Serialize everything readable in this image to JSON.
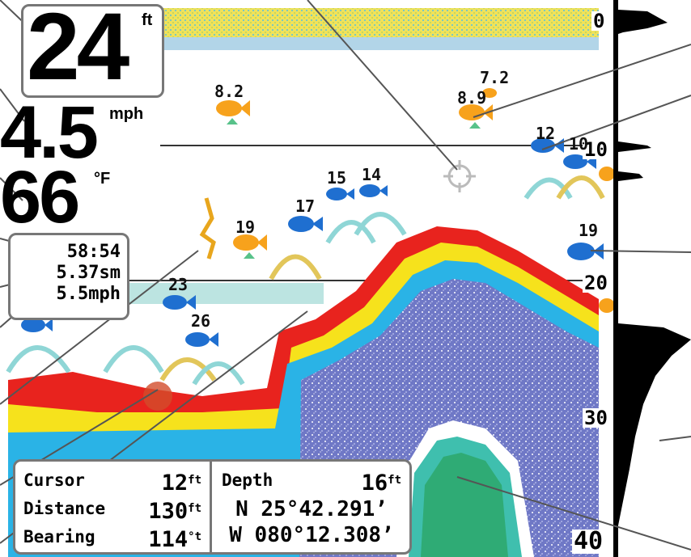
{
  "readouts": {
    "depth_value": "24",
    "depth_unit": "ft",
    "speed_value": "4.5",
    "speed_unit": "mph",
    "temp_value": "66",
    "temp_unit": "°F",
    "timer": "58:54",
    "distance": "5.37sm",
    "avg_speed": "5.5mph"
  },
  "depth_scale": [
    "0",
    "10",
    "20",
    "30",
    "40"
  ],
  "fish": [
    {
      "depth": "8.2"
    },
    {
      "depth": "7.2"
    },
    {
      "depth": "8.9"
    },
    {
      "depth": "12"
    },
    {
      "depth": "10"
    },
    {
      "depth": "15"
    },
    {
      "depth": "14"
    },
    {
      "depth": "17"
    },
    {
      "depth": "19"
    },
    {
      "depth": "19"
    },
    {
      "depth": "23"
    },
    {
      "depth": "26"
    }
  ],
  "cursor_box": {
    "cursor_label": "Cursor",
    "cursor_value": "12",
    "cursor_unit": "ft",
    "distance_label": "Distance",
    "distance_value": "130",
    "distance_unit": "ft",
    "bearing_label": "Bearing",
    "bearing_value": "114",
    "bearing_unit": "°t"
  },
  "position_box": {
    "depth_label": "Depth",
    "depth_value": "16",
    "depth_unit": "ft",
    "latitude": "N 25°42.291’",
    "longitude": "W 080°12.308’"
  },
  "colors": {
    "strong_return": "#e8231e",
    "medium_return": "#f6e21c",
    "weak_return": "#2ab3e6",
    "bottom_fill": "#7a7fc8",
    "fish_orange": "#f7a21c",
    "fish_blue": "#1f6fd0"
  }
}
